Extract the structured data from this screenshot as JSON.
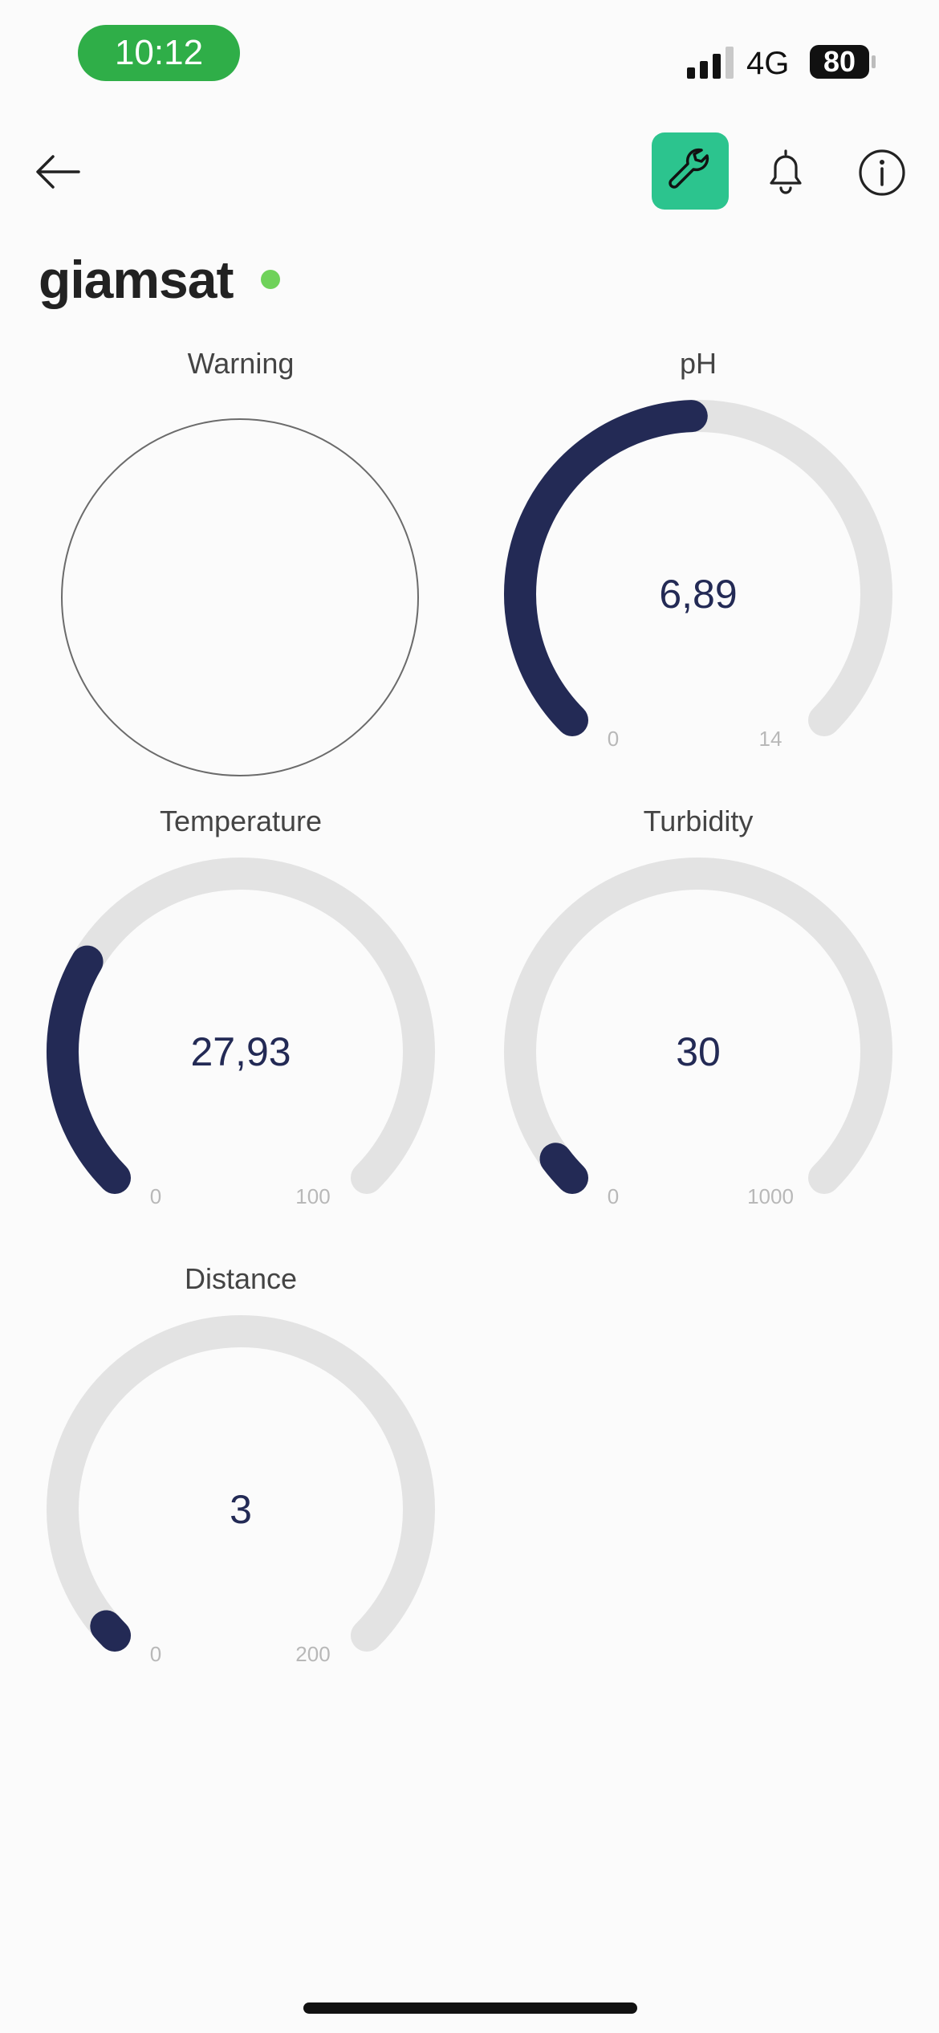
{
  "status_bar": {
    "time": "10:12",
    "network": "4G",
    "battery": "80",
    "time_pill_color": "#2fae48"
  },
  "nav": {
    "back_icon": "arrow-left-icon",
    "actions": [
      "wrench-icon",
      "bell-icon",
      "info-icon"
    ],
    "active_color": "#2cc48e"
  },
  "device": {
    "name": "giamsat",
    "online_color": "#6fd25a"
  },
  "warning": {
    "label": "Warning"
  },
  "gauges": [
    {
      "id": "ph",
      "label": "pH",
      "value": 6.89,
      "display": "6,89",
      "min": "0",
      "max": "14",
      "min_value": 0,
      "max_value": 14
    },
    {
      "id": "temperature",
      "label": "Temperature",
      "value": 27.93,
      "display": "27,93",
      "min": "0",
      "max": "100",
      "min_value": 0,
      "max_value": 100
    },
    {
      "id": "turbidity",
      "label": "Turbidity",
      "value": 30,
      "display": "30",
      "min": "0",
      "max": "1000",
      "min_value": 0,
      "max_value": 1000
    },
    {
      "id": "distance",
      "label": "Distance",
      "value": 3,
      "display": "3",
      "min": "0",
      "max": "200",
      "min_value": 0,
      "max_value": 200
    }
  ],
  "colors": {
    "gauge_fill": "#232a55",
    "gauge_track": "#e3e3e3"
  }
}
